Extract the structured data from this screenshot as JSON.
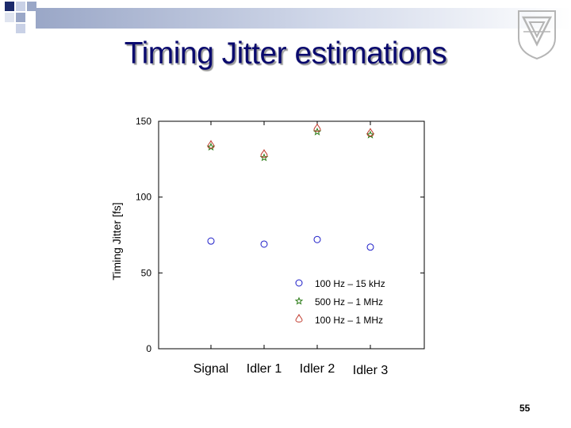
{
  "slide": {
    "title": "Timing Jitter estimations",
    "page_number": "55",
    "logo_icon": "university-emblem-icon"
  },
  "chart_data": {
    "type": "scatter",
    "title": "",
    "xlabel": "",
    "ylabel": "Timing Jitter [fs]",
    "categories": [
      "Signal",
      "Idler 1",
      "Idler 2",
      "Idler 3"
    ],
    "ylim": [
      0,
      150
    ],
    "yticks": [
      0,
      50,
      100,
      150
    ],
    "grid": false,
    "legend_position": "lower-right",
    "series": [
      {
        "name": "100 Hz – 15 kHz",
        "marker": "circle",
        "color": "#1c1cc8",
        "values": [
          71,
          69,
          72,
          67
        ]
      },
      {
        "name": "500 Hz – 1 MHz",
        "marker": "star",
        "color": "#2e7d1a",
        "values": [
          133,
          126,
          143,
          141
        ]
      },
      {
        "name": "100 Hz – 1 MHz",
        "marker": "diamond",
        "color": "#c0392b",
        "values": [
          134,
          128,
          145,
          142
        ]
      }
    ]
  }
}
